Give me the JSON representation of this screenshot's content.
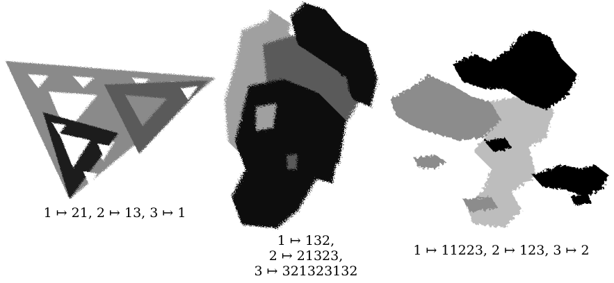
{
  "figure": {
    "panels": [
      {
        "id": "panel1",
        "caption_lines": [
          "1 ↦ 21,  2 ↦ 13,  3 ↦ 1"
        ],
        "colors": {
          "light": "#8a8a8a",
          "mid": "#5a5a5a",
          "dark": "#1a1a1a"
        }
      },
      {
        "id": "panel2",
        "caption_lines": [
          "1 ↦ 132,",
          "2 ↦ 21323,",
          "3 ↦ 321323132"
        ],
        "colors": {
          "light": "#a0a0a0",
          "mid": "#5a5a5a",
          "dark": "#0a0a0a"
        }
      },
      {
        "id": "panel3",
        "caption_lines": [
          "1 ↦ 11223,  2 ↦ 123,  3 ↦ 2"
        ],
        "colors": {
          "light": "#bdbdbd",
          "mid": "#8c8c8c",
          "dark": "#000000"
        }
      }
    ]
  }
}
